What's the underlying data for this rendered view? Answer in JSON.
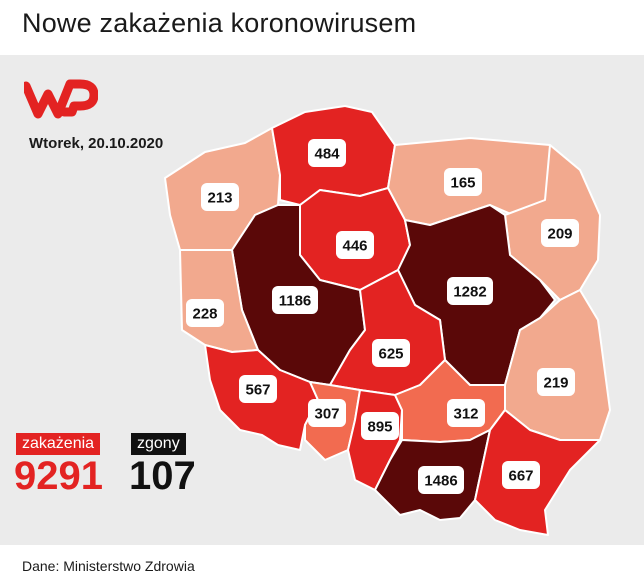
{
  "header": {
    "title": "Nowe zakażenia koronowirusem"
  },
  "date": "Wtorek, 20.10.2020",
  "logo_icon": "wp-logo-icon",
  "summary": {
    "cases_label": "zakażenia",
    "cases_value": "9291",
    "deaths_label": "zgony",
    "deaths_value": "107"
  },
  "source": "Dane: Ministerstwo Zdrowia",
  "colors": {
    "brand": "#e32322",
    "level_low": "#f2a98e",
    "level_mid": "#f26b50",
    "level_high": "#e32322",
    "level_max": "#5a0808"
  },
  "regions": [
    {
      "id": "zachodniopomorskie",
      "value": "213",
      "level": "low"
    },
    {
      "id": "pomorskie",
      "value": "484",
      "level": "high"
    },
    {
      "id": "warminsko-mazurskie",
      "value": "165",
      "level": "low"
    },
    {
      "id": "podlaskie",
      "value": "209",
      "level": "low"
    },
    {
      "id": "kujawsko-pomorskie",
      "value": "446",
      "level": "high"
    },
    {
      "id": "wielkopolskie",
      "value": "1186",
      "level": "max"
    },
    {
      "id": "mazowieckie",
      "value": "1282",
      "level": "max"
    },
    {
      "id": "lubuskie",
      "value": "228",
      "level": "low"
    },
    {
      "id": "lodzkie",
      "value": "625",
      "level": "high"
    },
    {
      "id": "lubelskie",
      "value": "219",
      "level": "low"
    },
    {
      "id": "dolnoslaskie",
      "value": "567",
      "level": "high"
    },
    {
      "id": "opolskie",
      "value": "307",
      "level": "mid"
    },
    {
      "id": "slaskie",
      "value": "895",
      "level": "high"
    },
    {
      "id": "swietokrzyskie",
      "value": "312",
      "level": "mid"
    },
    {
      "id": "malopolskie",
      "value": "1486",
      "level": "max"
    },
    {
      "id": "podkarpackie",
      "value": "667",
      "level": "high"
    }
  ]
}
